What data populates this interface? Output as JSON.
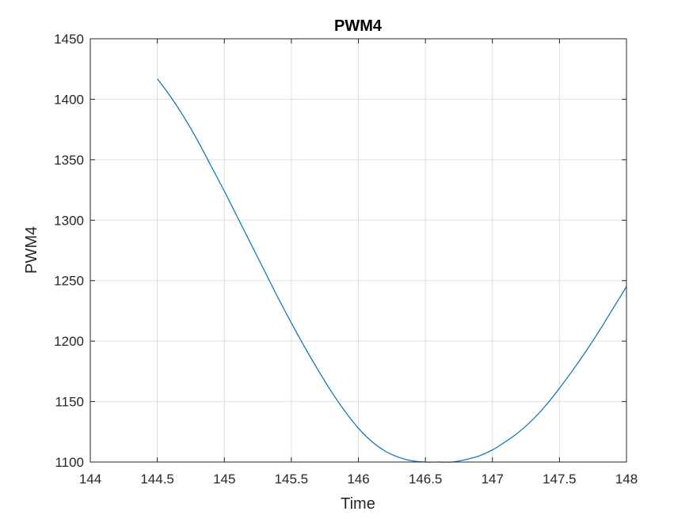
{
  "chart_data": {
    "type": "line",
    "title": "PWM4",
    "xlabel": "Time",
    "ylabel": "PWM4",
    "xlim": [
      144,
      148
    ],
    "ylim": [
      1100,
      1450
    ],
    "xticks": [
      144,
      144.5,
      145,
      145.5,
      146,
      146.5,
      147,
      147.5,
      148
    ],
    "xtick_labels": [
      "144",
      "144.5",
      "145",
      "145.5",
      "146",
      "146.5",
      "147",
      "147.5",
      "148"
    ],
    "yticks": [
      1100,
      1150,
      1200,
      1250,
      1300,
      1350,
      1400,
      1450
    ],
    "ytick_labels": [
      "1100",
      "1150",
      "1200",
      "1250",
      "1300",
      "1350",
      "1400",
      "1450"
    ],
    "grid": true,
    "line_color": "#0072bd",
    "series": [
      {
        "x": [
          144.5,
          144.6,
          144.7,
          144.8,
          144.9,
          145.0,
          145.1,
          145.2,
          145.3,
          145.4,
          145.5,
          145.6,
          145.7,
          145.8,
          145.9,
          146.0,
          146.1,
          146.2,
          146.3,
          146.4,
          146.5,
          146.6,
          146.7,
          146.8,
          146.9,
          147.0,
          147.1,
          147.2,
          147.3,
          147.4,
          147.5,
          147.6,
          147.7,
          147.8,
          147.9,
          148.0
        ],
        "y": [
          1417,
          1402,
          1385,
          1366,
          1345,
          1324,
          1302,
          1280,
          1258,
          1236,
          1215,
          1195,
          1176,
          1158,
          1142,
          1128,
          1117,
          1109,
          1104,
          1101,
          1100,
          1100,
          1100,
          1102,
          1105,
          1110,
          1117,
          1125,
          1135,
          1147,
          1161,
          1176,
          1192,
          1209,
          1227,
          1245
        ]
      }
    ]
  }
}
